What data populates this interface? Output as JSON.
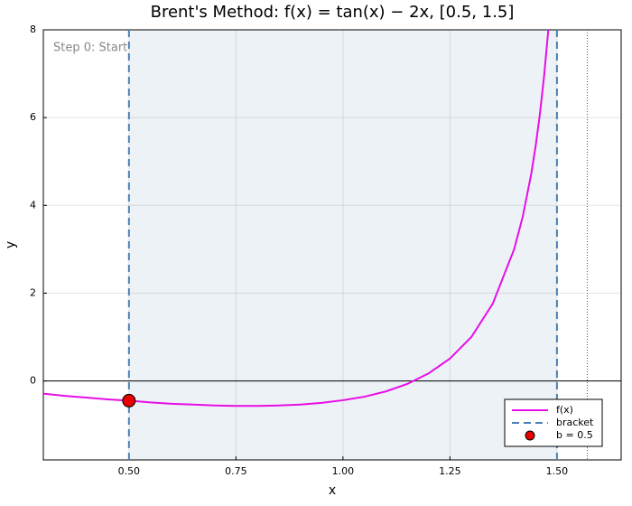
{
  "chart_data": {
    "type": "line",
    "title": "Brent's Method: f(x) = tan(x) − 2x, [0.5, 1.5]",
    "annotation": "Step 0: Start",
    "xlabel": "x",
    "ylabel": "y",
    "xlim": [
      0.3,
      1.65
    ],
    "ylim": [
      -1.8,
      8
    ],
    "xticks": [
      {
        "value": 0.5,
        "label": "0.50"
      },
      {
        "value": 0.75,
        "label": "0.75"
      },
      {
        "value": 1.0,
        "label": "1.00"
      },
      {
        "value": 1.25,
        "label": "1.25"
      },
      {
        "value": 1.5,
        "label": "1.50"
      }
    ],
    "yticks": [
      0,
      2,
      4,
      6,
      8
    ],
    "grid": true,
    "legend": "bottom right",
    "series": [
      {
        "name": "f(x)",
        "color": "#e60ee6",
        "x": [
          0.3,
          0.35,
          0.4,
          0.45,
          0.5,
          0.55,
          0.6,
          0.65,
          0.7,
          0.75,
          0.8,
          0.85,
          0.9,
          0.95,
          1.0,
          1.05,
          1.1,
          1.15,
          1.2,
          1.25,
          1.3,
          1.35,
          1.4,
          1.42,
          1.44,
          1.45,
          1.46,
          1.47,
          1.48
        ],
        "values": [
          -0.29,
          -0.34,
          -0.38,
          -0.42,
          -0.45,
          -0.49,
          -0.52,
          -0.54,
          -0.56,
          -0.57,
          -0.57,
          -0.56,
          -0.54,
          -0.5,
          -0.44,
          -0.36,
          -0.24,
          -0.07,
          0.17,
          0.51,
          1.0,
          1.76,
          3.0,
          3.74,
          4.72,
          5.34,
          6.07,
          6.95,
          8.02
        ]
      }
    ],
    "bracket": {
      "name": "bracket",
      "color": "#4a7fb5",
      "values": [
        0.5,
        1.5
      ]
    },
    "point": {
      "name": "b = 0.5",
      "color": "#e60000",
      "x": 0.5,
      "y": -0.45
    },
    "asymptote_x": 1.5708,
    "zero_line": 0
  }
}
